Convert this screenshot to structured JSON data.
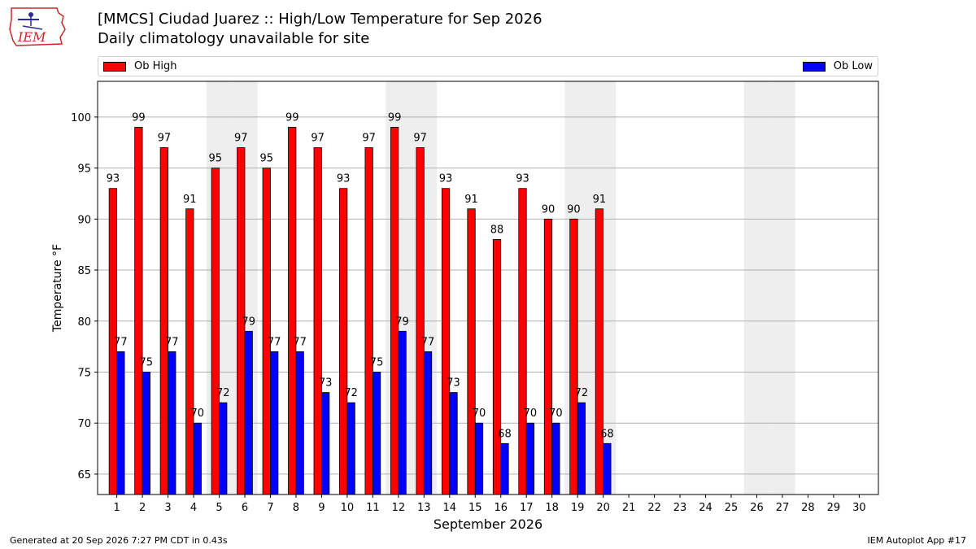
{
  "header": {
    "title": "[MMCS] Ciudad Juarez :: High/Low Temperature for Sep 2026",
    "subtitle": "Daily climatology unavailable for site",
    "logo_text": "IEM"
  },
  "legend": {
    "high_label": "Ob High",
    "low_label": "Ob Low"
  },
  "colors": {
    "high": "#ff0000",
    "low": "#0000ff",
    "weekend_band": "#eeeeee",
    "grid": "#b0b0b0"
  },
  "footer": {
    "left": "Generated at 20 Sep 2026 7:27 PM CDT in 0.43s",
    "right": "IEM Autoplot App #17"
  },
  "chart_data": {
    "type": "bar",
    "title": "[MMCS] Ciudad Juarez :: High/Low Temperature for Sep 2026",
    "subtitle": "Daily climatology unavailable for site",
    "xlabel": "September 2026",
    "ylabel": "Temperature °F",
    "ylim": [
      63,
      103.5
    ],
    "yticks": [
      65,
      70,
      75,
      80,
      85,
      90,
      95,
      100
    ],
    "grid": true,
    "legend_position": "top",
    "categories": [
      "1",
      "2",
      "3",
      "4",
      "5",
      "6",
      "7",
      "8",
      "9",
      "10",
      "11",
      "12",
      "13",
      "14",
      "15",
      "16",
      "17",
      "18",
      "19",
      "20",
      "21",
      "22",
      "23",
      "24",
      "25",
      "26",
      "27",
      "28",
      "29",
      "30"
    ],
    "weekend_days": [
      5,
      6,
      12,
      13,
      19,
      20,
      26,
      27
    ],
    "series": [
      {
        "name": "Ob High",
        "values": [
          93,
          99,
          97,
          91,
          95,
          97,
          95,
          99,
          97,
          93,
          97,
          99,
          97,
          93,
          91,
          88,
          93,
          90,
          90,
          91,
          null,
          null,
          null,
          null,
          null,
          null,
          null,
          null,
          null,
          null
        ]
      },
      {
        "name": "Ob Low",
        "values": [
          77,
          75,
          77,
          70,
          72,
          79,
          77,
          77,
          73,
          72,
          75,
          79,
          77,
          73,
          70,
          68,
          70,
          70,
          72,
          68,
          null,
          null,
          null,
          null,
          null,
          null,
          null,
          null,
          null,
          null
        ]
      }
    ]
  }
}
